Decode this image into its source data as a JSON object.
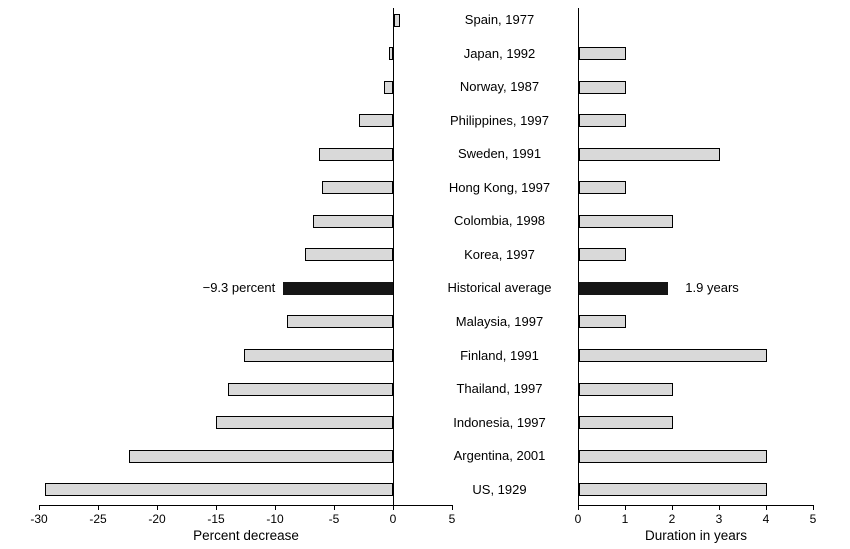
{
  "chart_data": {
    "type": "bar",
    "orientation": "horizontal",
    "layout": "two-panel back-to-back with center category labels",
    "grid": false,
    "legend": "none",
    "categories": [
      "Spain, 1977",
      "Japan, 1992",
      "Norway, 1987",
      "Philippines, 1997",
      "Sweden, 1991",
      "Hong Kong, 1997",
      "Colombia, 1998",
      "Korea, 1997",
      "Historical average",
      "Malaysia, 1997",
      "Finland, 1991",
      "Thailand, 1997",
      "Indonesia, 1997",
      "Argentina, 2001",
      "US, 1929"
    ],
    "highlight_category": "Historical average",
    "series": [
      {
        "name": "Percent decrease",
        "values": [
          0.5,
          -0.3,
          -0.8,
          -2.9,
          -6.3,
          -6.0,
          -6.8,
          -7.5,
          -9.3,
          -9.0,
          -12.6,
          -14.0,
          -15.0,
          -22.4,
          -29.5
        ],
        "axis": {
          "label": "Percent decrease",
          "range": [
            -30,
            5
          ],
          "tick_values": [
            -30,
            -25,
            -20,
            -15,
            -10,
            -5,
            0,
            5
          ],
          "tick_labels": [
            "-30",
            "-25",
            "-20",
            "-15",
            "-10",
            "-5",
            "0",
            "5"
          ]
        }
      },
      {
        "name": "Duration in years",
        "values": [
          0,
          1,
          1,
          1,
          3,
          1,
          2,
          1,
          1.9,
          1,
          4,
          2,
          2,
          4,
          4
        ],
        "axis": {
          "label": "Duration in years",
          "range": [
            0,
            5
          ],
          "tick_values": [
            0,
            1,
            2,
            3,
            4,
            5
          ],
          "tick_labels": [
            "0",
            "1",
            "2",
            "3",
            "4",
            "5"
          ]
        }
      }
    ],
    "annotations": [
      {
        "text": "−9.3 percent",
        "panel": 0,
        "attached_to": "Historical average"
      },
      {
        "text": "1.9 years",
        "panel": 1,
        "attached_to": "Historical average"
      }
    ],
    "colors": {
      "bar_fill": "#d9d9d9",
      "bar_border": "#000000",
      "highlight_fill": "#151515",
      "axis": "#000000",
      "background": "#ffffff"
    }
  }
}
